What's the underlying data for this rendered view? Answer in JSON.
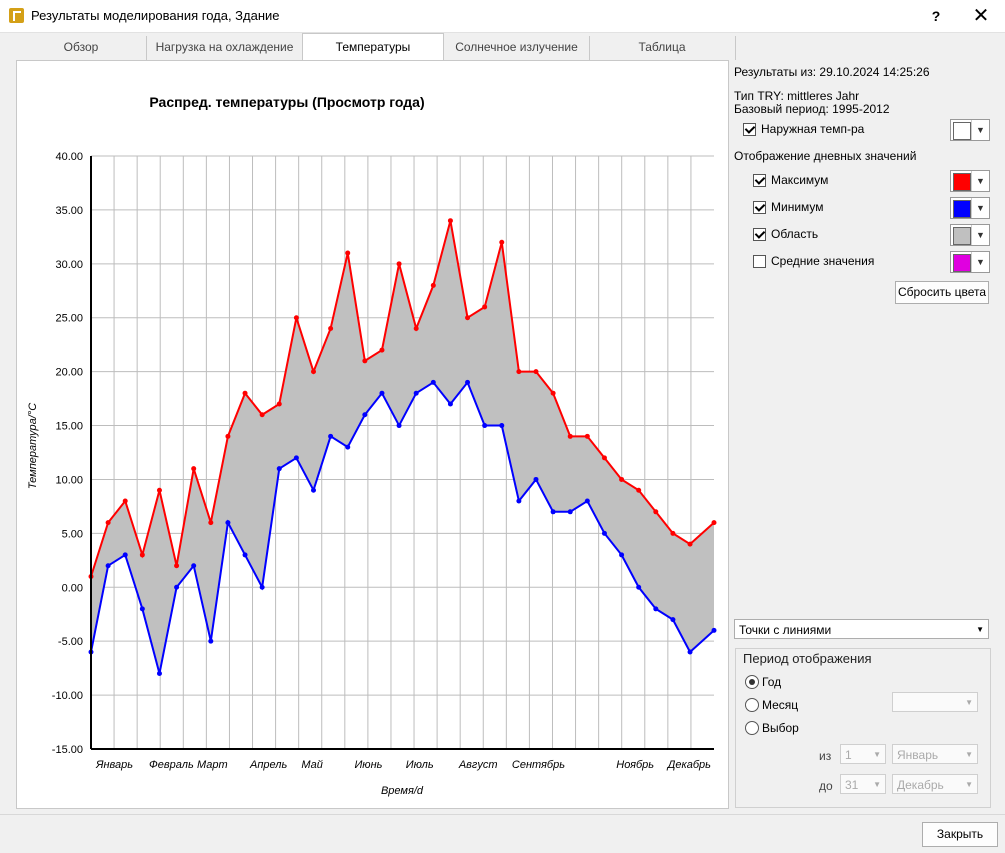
{
  "window": {
    "title": "Результаты моделирования года, Здание",
    "help": "?",
    "close": "✕"
  },
  "tabs": [
    {
      "label": "Обзор",
      "active": false
    },
    {
      "label": "Нагрузка на охлаждение",
      "active": false
    },
    {
      "label": "Температуры",
      "active": true
    },
    {
      "label": "Солнечное излучение",
      "active": false
    },
    {
      "label": "Таблица",
      "active": false
    }
  ],
  "side": {
    "results_from": "Результаты из: 29.10.2024 14:25:26",
    "try_type": "Тип TRY: mittleres Jahr",
    "base_period": "Базовый период: 1995-2012",
    "outdoor": {
      "label": "Наружная темп-ра",
      "checked": true,
      "color": "#ffffff"
    },
    "daily_header": "Отображение дневных значений",
    "series": [
      {
        "label": "Максимум",
        "checked": true,
        "color": "#ff0000"
      },
      {
        "label": "Минимум",
        "checked": true,
        "color": "#0000ff"
      },
      {
        "label": "Область",
        "checked": true,
        "color": "#c0c0c0"
      },
      {
        "label": "Средние значения",
        "checked": false,
        "color": "#e000e0"
      }
    ],
    "reset_colors": "Сбросить цвета",
    "display_mode": "Точки с линиями",
    "period": {
      "title": "Период отображения",
      "options": [
        "Год",
        "Месяц",
        "Выбор"
      ],
      "selected": "Год",
      "from_label": "из",
      "to_label": "до",
      "from_day": "1",
      "from_month": "Январь",
      "to_day": "31",
      "to_month": "Декабрь",
      "month_value": ""
    }
  },
  "footer": {
    "close_button": "Закрыть"
  },
  "chart_data": {
    "type": "line",
    "title": "Распред. температуры (Просмотр года)",
    "xlabel": "Время/d",
    "ylabel": "Температура/°C",
    "ylim": [
      -15,
      40
    ],
    "yticks": [
      "40.00",
      "35.00",
      "30.00",
      "25.00",
      "20.00",
      "15.00",
      "10.00",
      "5.00",
      "0.00",
      "-5.00",
      "-10.00",
      "-15.00"
    ],
    "month_labels": [
      {
        "label": "Январь",
        "day": 0
      },
      {
        "label": "Февраль",
        "day": 31
      },
      {
        "label": "Март",
        "day": 59
      },
      {
        "label": "Апрель",
        "day": 90
      },
      {
        "label": "Май",
        "day": 120
      },
      {
        "label": "Июнь",
        "day": 151
      },
      {
        "label": "Июль",
        "day": 181
      },
      {
        "label": "Август",
        "day": 212
      },
      {
        "label": "Сентябрь",
        "day": 243
      },
      {
        "label": "Ноябрь",
        "day": 304
      },
      {
        "label": "Декабрь",
        "day": 334
      }
    ],
    "grid": true,
    "series": [
      {
        "name": "Максимум",
        "color": "#ff0000",
        "x": [
          0,
          10,
          20,
          30,
          40,
          50,
          60,
          70,
          80,
          90,
          100,
          110,
          120,
          130,
          140,
          150,
          160,
          170,
          180,
          190,
          200,
          210,
          220,
          230,
          240,
          250,
          260,
          270,
          280,
          290,
          300,
          310,
          320,
          330,
          340,
          350,
          364
        ],
        "values": [
          1,
          6,
          8,
          3,
          9,
          2,
          11,
          6,
          14,
          18,
          16,
          17,
          25,
          20,
          24,
          31,
          21,
          22,
          30,
          24,
          28,
          34,
          25,
          26,
          32,
          20,
          20,
          18,
          14,
          14,
          12,
          10,
          9,
          7,
          5,
          4,
          6
        ]
      },
      {
        "name": "Минимум",
        "color": "#0000ff",
        "x": [
          0,
          10,
          20,
          30,
          40,
          50,
          60,
          70,
          80,
          90,
          100,
          110,
          120,
          130,
          140,
          150,
          160,
          170,
          180,
          190,
          200,
          210,
          220,
          230,
          240,
          250,
          260,
          270,
          280,
          290,
          300,
          310,
          320,
          330,
          340,
          350,
          364
        ],
        "values": [
          -6,
          2,
          3,
          -2,
          -8,
          0,
          2,
          -5,
          6,
          3,
          0,
          11,
          12,
          9,
          14,
          13,
          16,
          18,
          15,
          18,
          19,
          17,
          19,
          15,
          15,
          8,
          10,
          7,
          7,
          8,
          5,
          3,
          0,
          -2,
          -3,
          -6,
          -4
        ]
      }
    ]
  }
}
